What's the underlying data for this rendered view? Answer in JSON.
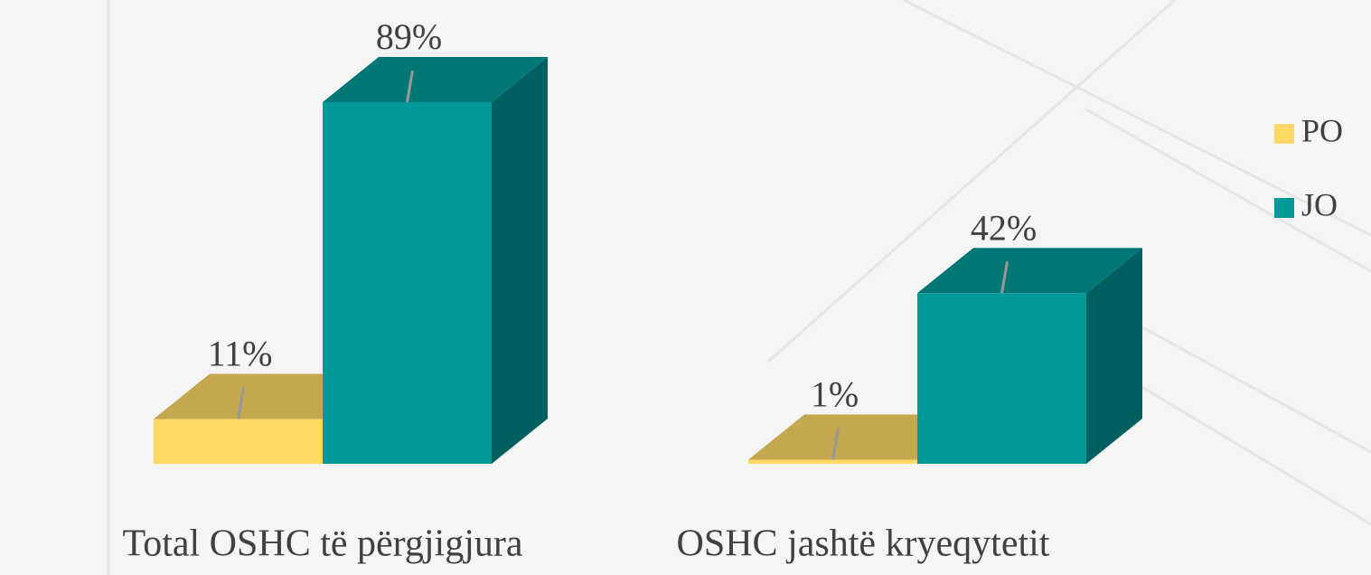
{
  "chart_data": {
    "type": "bar3d",
    "categories": [
      "Total OSHC të përgjigjura",
      "OSHC jashtë kryeqytetit"
    ],
    "series": [
      {
        "name": "PO",
        "color": "#FFD966",
        "values": [
          11,
          1
        ],
        "value_labels": [
          "11%",
          "1%"
        ]
      },
      {
        "name": "JO",
        "color": "#009999",
        "values": [
          89,
          42
        ],
        "value_labels": [
          "89%",
          "42%"
        ]
      }
    ],
    "legend": "right"
  }
}
